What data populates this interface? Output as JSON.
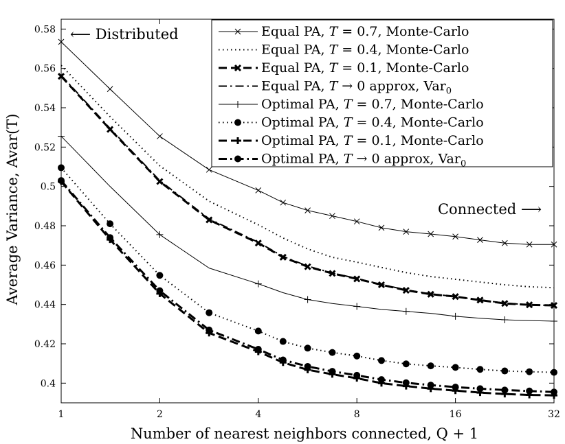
{
  "chart_data": {
    "type": "line",
    "title": "",
    "xlabel": "Number of nearest neighbors connected, Q + 1",
    "ylabel": "Average Variance, Avar(T)",
    "xscale": "log2",
    "xlim": [
      1,
      32
    ],
    "ylim": [
      0.39,
      0.585
    ],
    "x": [
      1,
      1.41,
      2,
      2.83,
      4,
      4.76,
      5.66,
      6.73,
      8,
      9.51,
      11.31,
      13.45,
      16,
      19.03,
      22.63,
      26.91,
      32
    ],
    "xticks": [
      1,
      2,
      4,
      8,
      16,
      32
    ],
    "xtick_labels": [
      "1",
      "2",
      "4",
      "8",
      "16",
      "32"
    ],
    "yticks": [
      0.4,
      0.42,
      0.44,
      0.46,
      0.48,
      0.5,
      0.52,
      0.54,
      0.56,
      0.58
    ],
    "ytick_labels": [
      "0.4",
      "0.42",
      "0.44",
      "0.46",
      "0.48",
      "0.5",
      "0.52",
      "0.54",
      "0.56",
      "0.58"
    ],
    "grid": false,
    "legend_position": "top-right",
    "legend_title": "",
    "legend_parts": [
      {
        "pre": "Equal PA, ",
        "var": "T",
        "post": " = 0.7, Monte-Carlo"
      },
      {
        "pre": "Equal PA, ",
        "var": "T",
        "post": " = 0.4, Monte-Carlo"
      },
      {
        "pre": "Equal PA, ",
        "var": "T",
        "post": " = 0.1, Monte-Carlo"
      },
      {
        "pre": "Equal PA, ",
        "var": "T",
        "post": " → 0 approx, Var",
        "sub": "0"
      },
      {
        "pre": "Optimal PA, ",
        "var": "T",
        "post": " = 0.7, Monte-Carlo"
      },
      {
        "pre": "Optimal PA, ",
        "var": "T",
        "post": " = 0.4, Monte-Carlo"
      },
      {
        "pre": "Optimal PA, ",
        "var": "T",
        "post": " = 0.1, Monte-Carlo"
      },
      {
        "pre": "Optimal PA, ",
        "var": "T",
        "post": " → 0 approx, Var",
        "sub": "0"
      }
    ],
    "annotations": [
      {
        "text": "⟵ Distributed",
        "anchor": "top-left"
      },
      {
        "text": "Connected ⟶",
        "anchor": "right-middle"
      }
    ],
    "series": [
      {
        "name": "Equal PA, T = 0.7, Monte-Carlo",
        "line": "solid",
        "width": 1,
        "marker": "x",
        "marker_every": 1,
        "values": [
          0.5735,
          0.5495,
          0.5255,
          0.5085,
          0.498,
          0.4918,
          0.4878,
          0.485,
          0.4822,
          0.479,
          0.477,
          0.4758,
          0.4745,
          0.4728,
          0.4712,
          0.4705,
          0.4705
        ]
      },
      {
        "name": "Equal PA, T = 0.4, Monte-Carlo",
        "line": "dotted",
        "width": 2,
        "marker": "none",
        "marker_every": 1,
        "values": [
          0.5615,
          0.5355,
          0.5105,
          0.4925,
          0.4805,
          0.4738,
          0.4682,
          0.464,
          0.4615,
          0.4588,
          0.4562,
          0.4542,
          0.4528,
          0.4514,
          0.45,
          0.449,
          0.4485
        ]
      },
      {
        "name": "Equal PA, T = 0.1, Monte-Carlo",
        "line": "dashed",
        "width": 3,
        "marker": "bold-x",
        "marker_every": 1,
        "values": [
          0.556,
          0.529,
          0.5025,
          0.483,
          0.4712,
          0.464,
          0.4592,
          0.4558,
          0.453,
          0.45,
          0.4472,
          0.4452,
          0.444,
          0.4422,
          0.4405,
          0.4398,
          0.4395
        ]
      },
      {
        "name": "Equal PA, T → 0 approx, Var0",
        "line": "dashdot",
        "width": 2,
        "marker": "none",
        "marker_every": 1,
        "values": [
          0.5565,
          0.5295,
          0.503,
          0.4835,
          0.4716,
          0.4644,
          0.4595,
          0.456,
          0.4532,
          0.4502,
          0.4474,
          0.4454,
          0.444,
          0.4423,
          0.4407,
          0.4398,
          0.4395
        ]
      },
      {
        "name": "Optimal PA, T = 0.7, Monte-Carlo",
        "line": "solid",
        "width": 1,
        "marker": "plus",
        "marker_every": 2,
        "values": [
          0.5255,
          0.5,
          0.4755,
          0.4585,
          0.4505,
          0.446,
          0.4425,
          0.4405,
          0.439,
          0.4375,
          0.4365,
          0.4355,
          0.434,
          0.433,
          0.4322,
          0.4318,
          0.4315
        ]
      },
      {
        "name": "Optimal PA, T = 0.4, Monte-Carlo",
        "line": "dotted",
        "width": 2,
        "marker": "circle",
        "marker_every": 1,
        "values": [
          0.5095,
          0.481,
          0.4548,
          0.4358,
          0.4265,
          0.4212,
          0.4178,
          0.4156,
          0.4138,
          0.4115,
          0.4098,
          0.4088,
          0.408,
          0.407,
          0.4062,
          0.4058,
          0.4055
        ]
      },
      {
        "name": "Optimal PA, T = 0.1, Monte-Carlo",
        "line": "dashed",
        "width": 3,
        "marker": "bold-plus",
        "marker_every": 1,
        "values": [
          0.5025,
          0.473,
          0.4455,
          0.4255,
          0.416,
          0.4105,
          0.4068,
          0.4045,
          0.4025,
          0.4,
          0.3985,
          0.3972,
          0.3962,
          0.3952,
          0.3945,
          0.394,
          0.3938
        ]
      },
      {
        "name": "Optimal PA, T → 0 approx, Var0",
        "line": "dashdot",
        "width": 3,
        "marker": "circle",
        "marker_every": 1,
        "values": [
          0.503,
          0.474,
          0.447,
          0.427,
          0.4172,
          0.4118,
          0.4085,
          0.406,
          0.404,
          0.4018,
          0.4002,
          0.399,
          0.398,
          0.3972,
          0.3965,
          0.396,
          0.3955
        ]
      }
    ]
  }
}
